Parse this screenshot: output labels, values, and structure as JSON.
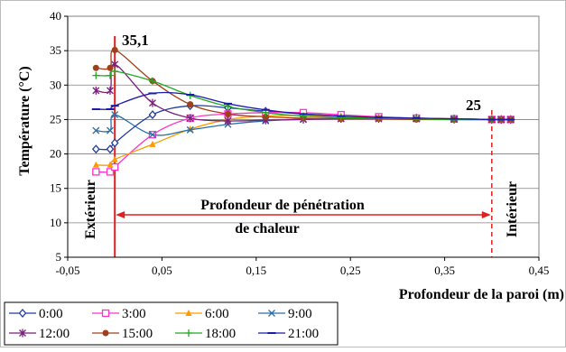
{
  "chart_data": {
    "type": "line",
    "xlabel": "Profondeur de la paroi (m)",
    "ylabel": "Température (°C)",
    "xlim": [
      -0.05,
      0.45
    ],
    "ylim": [
      5,
      40
    ],
    "x_ticks": [
      "-0,05",
      "0,05",
      "0,15",
      "0,25",
      "0,35",
      "0,45"
    ],
    "y_ticks": [
      "5",
      "10",
      "15",
      "20",
      "25",
      "30",
      "35",
      "40"
    ],
    "grid": "horizontal",
    "legend_position": "bottom",
    "colors": {
      "max_label": "#8b1a1a",
      "end_label": "#1f3fbf",
      "boundary_lines": "#e02020",
      "arrow": "#e02020"
    },
    "annotations": {
      "max_value": "35,1",
      "end_value": "25",
      "exterior": "Extérieur",
      "interior": "Intérieur",
      "penetration_line1": "Profondeur de pénétration",
      "penetration_line2": "de chaleur"
    },
    "boundaries": [
      0.0,
      0.4
    ],
    "series": [
      {
        "name": "0:00",
        "color": "#1f3f9f",
        "marker": "diamond",
        "x": [
          -0.02,
          -0.005,
          0.0,
          0.04,
          0.08,
          0.12,
          0.16,
          0.2,
          0.24,
          0.28,
          0.32,
          0.36,
          0.4,
          0.41,
          0.42
        ],
        "y": [
          20.7,
          20.7,
          21.6,
          25.7,
          27.0,
          26.7,
          26.2,
          25.8,
          25.5,
          25.3,
          25.2,
          25.1,
          25.0,
          25.0,
          25.0
        ]
      },
      {
        "name": "3:00",
        "color": "#ff33cc",
        "marker": "square",
        "x": [
          -0.02,
          -0.005,
          0.0,
          0.04,
          0.08,
          0.12,
          0.16,
          0.2,
          0.24,
          0.28,
          0.32,
          0.36,
          0.4,
          0.41,
          0.42
        ],
        "y": [
          17.4,
          17.4,
          18.1,
          22.8,
          25.2,
          25.8,
          26.0,
          26.0,
          25.7,
          25.4,
          25.2,
          25.1,
          25.0,
          25.0,
          25.0
        ]
      },
      {
        "name": "6:00",
        "color": "#ff9900",
        "marker": "triangle",
        "x": [
          -0.02,
          -0.005,
          0.0,
          0.04,
          0.08,
          0.12,
          0.16,
          0.2,
          0.24,
          0.28,
          0.32,
          0.36,
          0.4,
          0.41,
          0.42
        ],
        "y": [
          18.4,
          18.4,
          19.2,
          21.4,
          23.6,
          25.0,
          25.5,
          25.6,
          25.5,
          25.3,
          25.2,
          25.1,
          25.0,
          25.0,
          25.0
        ]
      },
      {
        "name": "9:00",
        "color": "#2a6fa8",
        "marker": "x",
        "x": [
          -0.02,
          -0.005,
          0.0,
          0.04,
          0.08,
          0.12,
          0.16,
          0.2,
          0.24,
          0.28,
          0.32,
          0.36,
          0.4,
          0.41,
          0.42
        ],
        "y": [
          23.4,
          23.4,
          25.7,
          22.8,
          23.5,
          24.3,
          24.8,
          25.1,
          25.2,
          25.2,
          25.1,
          25.1,
          25.0,
          25.0,
          25.0
        ]
      },
      {
        "name": "12:00",
        "color": "#7a1f7a",
        "marker": "star",
        "x": [
          -0.02,
          -0.005,
          0.0,
          0.04,
          0.08,
          0.12,
          0.16,
          0.2,
          0.24,
          0.28,
          0.32,
          0.36,
          0.4,
          0.41,
          0.42
        ],
        "y": [
          29.2,
          29.2,
          33.0,
          27.4,
          25.2,
          24.8,
          24.9,
          25.0,
          25.1,
          25.1,
          25.1,
          25.0,
          25.0,
          25.0,
          25.0
        ]
      },
      {
        "name": "15:00",
        "color": "#a0401a",
        "marker": "circle",
        "x": [
          -0.02,
          -0.005,
          0.0,
          0.04,
          0.08,
          0.12,
          0.16,
          0.2,
          0.24,
          0.28,
          0.32,
          0.36,
          0.4,
          0.41,
          0.42
        ],
        "y": [
          32.5,
          32.5,
          35.1,
          30.6,
          27.2,
          25.8,
          25.4,
          25.2,
          25.1,
          25.1,
          25.0,
          25.0,
          25.0,
          25.0,
          25.0
        ]
      },
      {
        "name": "18:00",
        "color": "#22aa22",
        "marker": "plus",
        "x": [
          -0.02,
          -0.005,
          0.0,
          0.04,
          0.08,
          0.12,
          0.16,
          0.2,
          0.24,
          0.28,
          0.32,
          0.36,
          0.4,
          0.41,
          0.42
        ],
        "y": [
          31.4,
          31.4,
          32.0,
          30.6,
          28.5,
          26.9,
          26.0,
          25.5,
          25.3,
          25.2,
          25.1,
          25.0,
          25.0,
          25.0,
          25.0
        ]
      },
      {
        "name": "21:00",
        "color": "#1a1aaa",
        "marker": "dash",
        "x": [
          -0.02,
          -0.005,
          0.0,
          0.04,
          0.08,
          0.12,
          0.16,
          0.2,
          0.24,
          0.28,
          0.32,
          0.36,
          0.4,
          0.41,
          0.42
        ],
        "y": [
          26.5,
          26.5,
          27.0,
          28.8,
          28.6,
          27.3,
          26.4,
          25.8,
          25.5,
          25.3,
          25.2,
          25.1,
          25.0,
          25.0,
          25.0
        ]
      }
    ]
  }
}
